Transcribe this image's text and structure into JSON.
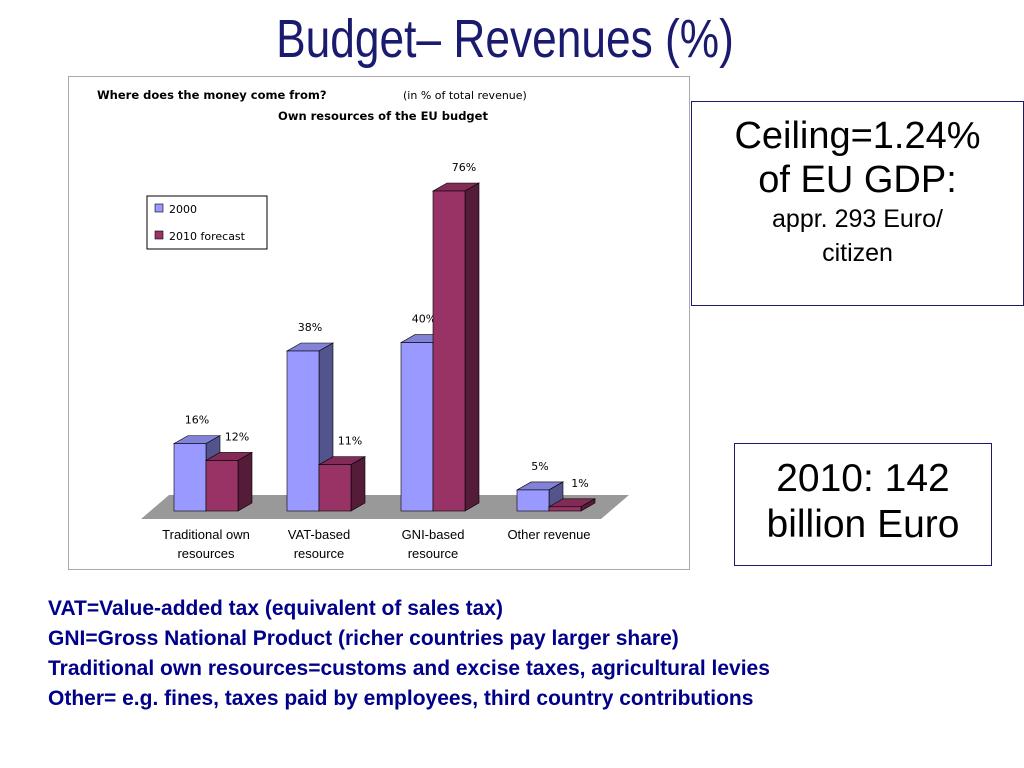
{
  "slide": {
    "title": "Budget– Revenues (%)",
    "ceiling_box": [
      "Ceiling=1.24%",
      "of EU GDP:",
      "appr. 293 Euro/",
      "citizen"
    ],
    "total_box": [
      "2010: 142",
      "billion Euro"
    ],
    "notes": [
      "VAT=Value-added tax (equivalent of sales tax)",
      "GNI=Gross National Product (richer countries pay larger share)",
      "Traditional own resources=customs and excise taxes, agricultural levies",
      "Other= e.g. fines, taxes paid by employees, third country contributions"
    ]
  },
  "chart_data": {
    "type": "bar",
    "title": "Where does the money come from?",
    "subtitle": "(in % of total revenue)",
    "caption": "Own resources of the EU budget",
    "categories": [
      "Traditional own resources",
      "VAT-based resource",
      "GNI-based resource",
      "Other revenue"
    ],
    "series": [
      {
        "name": "2000",
        "color": "#9999ff",
        "values": [
          16,
          38,
          40,
          5
        ],
        "value_labels": [
          "16%",
          "38%",
          "40%",
          "5%"
        ]
      },
      {
        "name": "2010 forecast",
        "color": "#993366",
        "values": [
          12,
          11,
          76,
          1
        ],
        "value_labels": [
          "12%",
          "11%",
          "76%",
          "1%"
        ]
      }
    ],
    "legend": "upper left"
  }
}
